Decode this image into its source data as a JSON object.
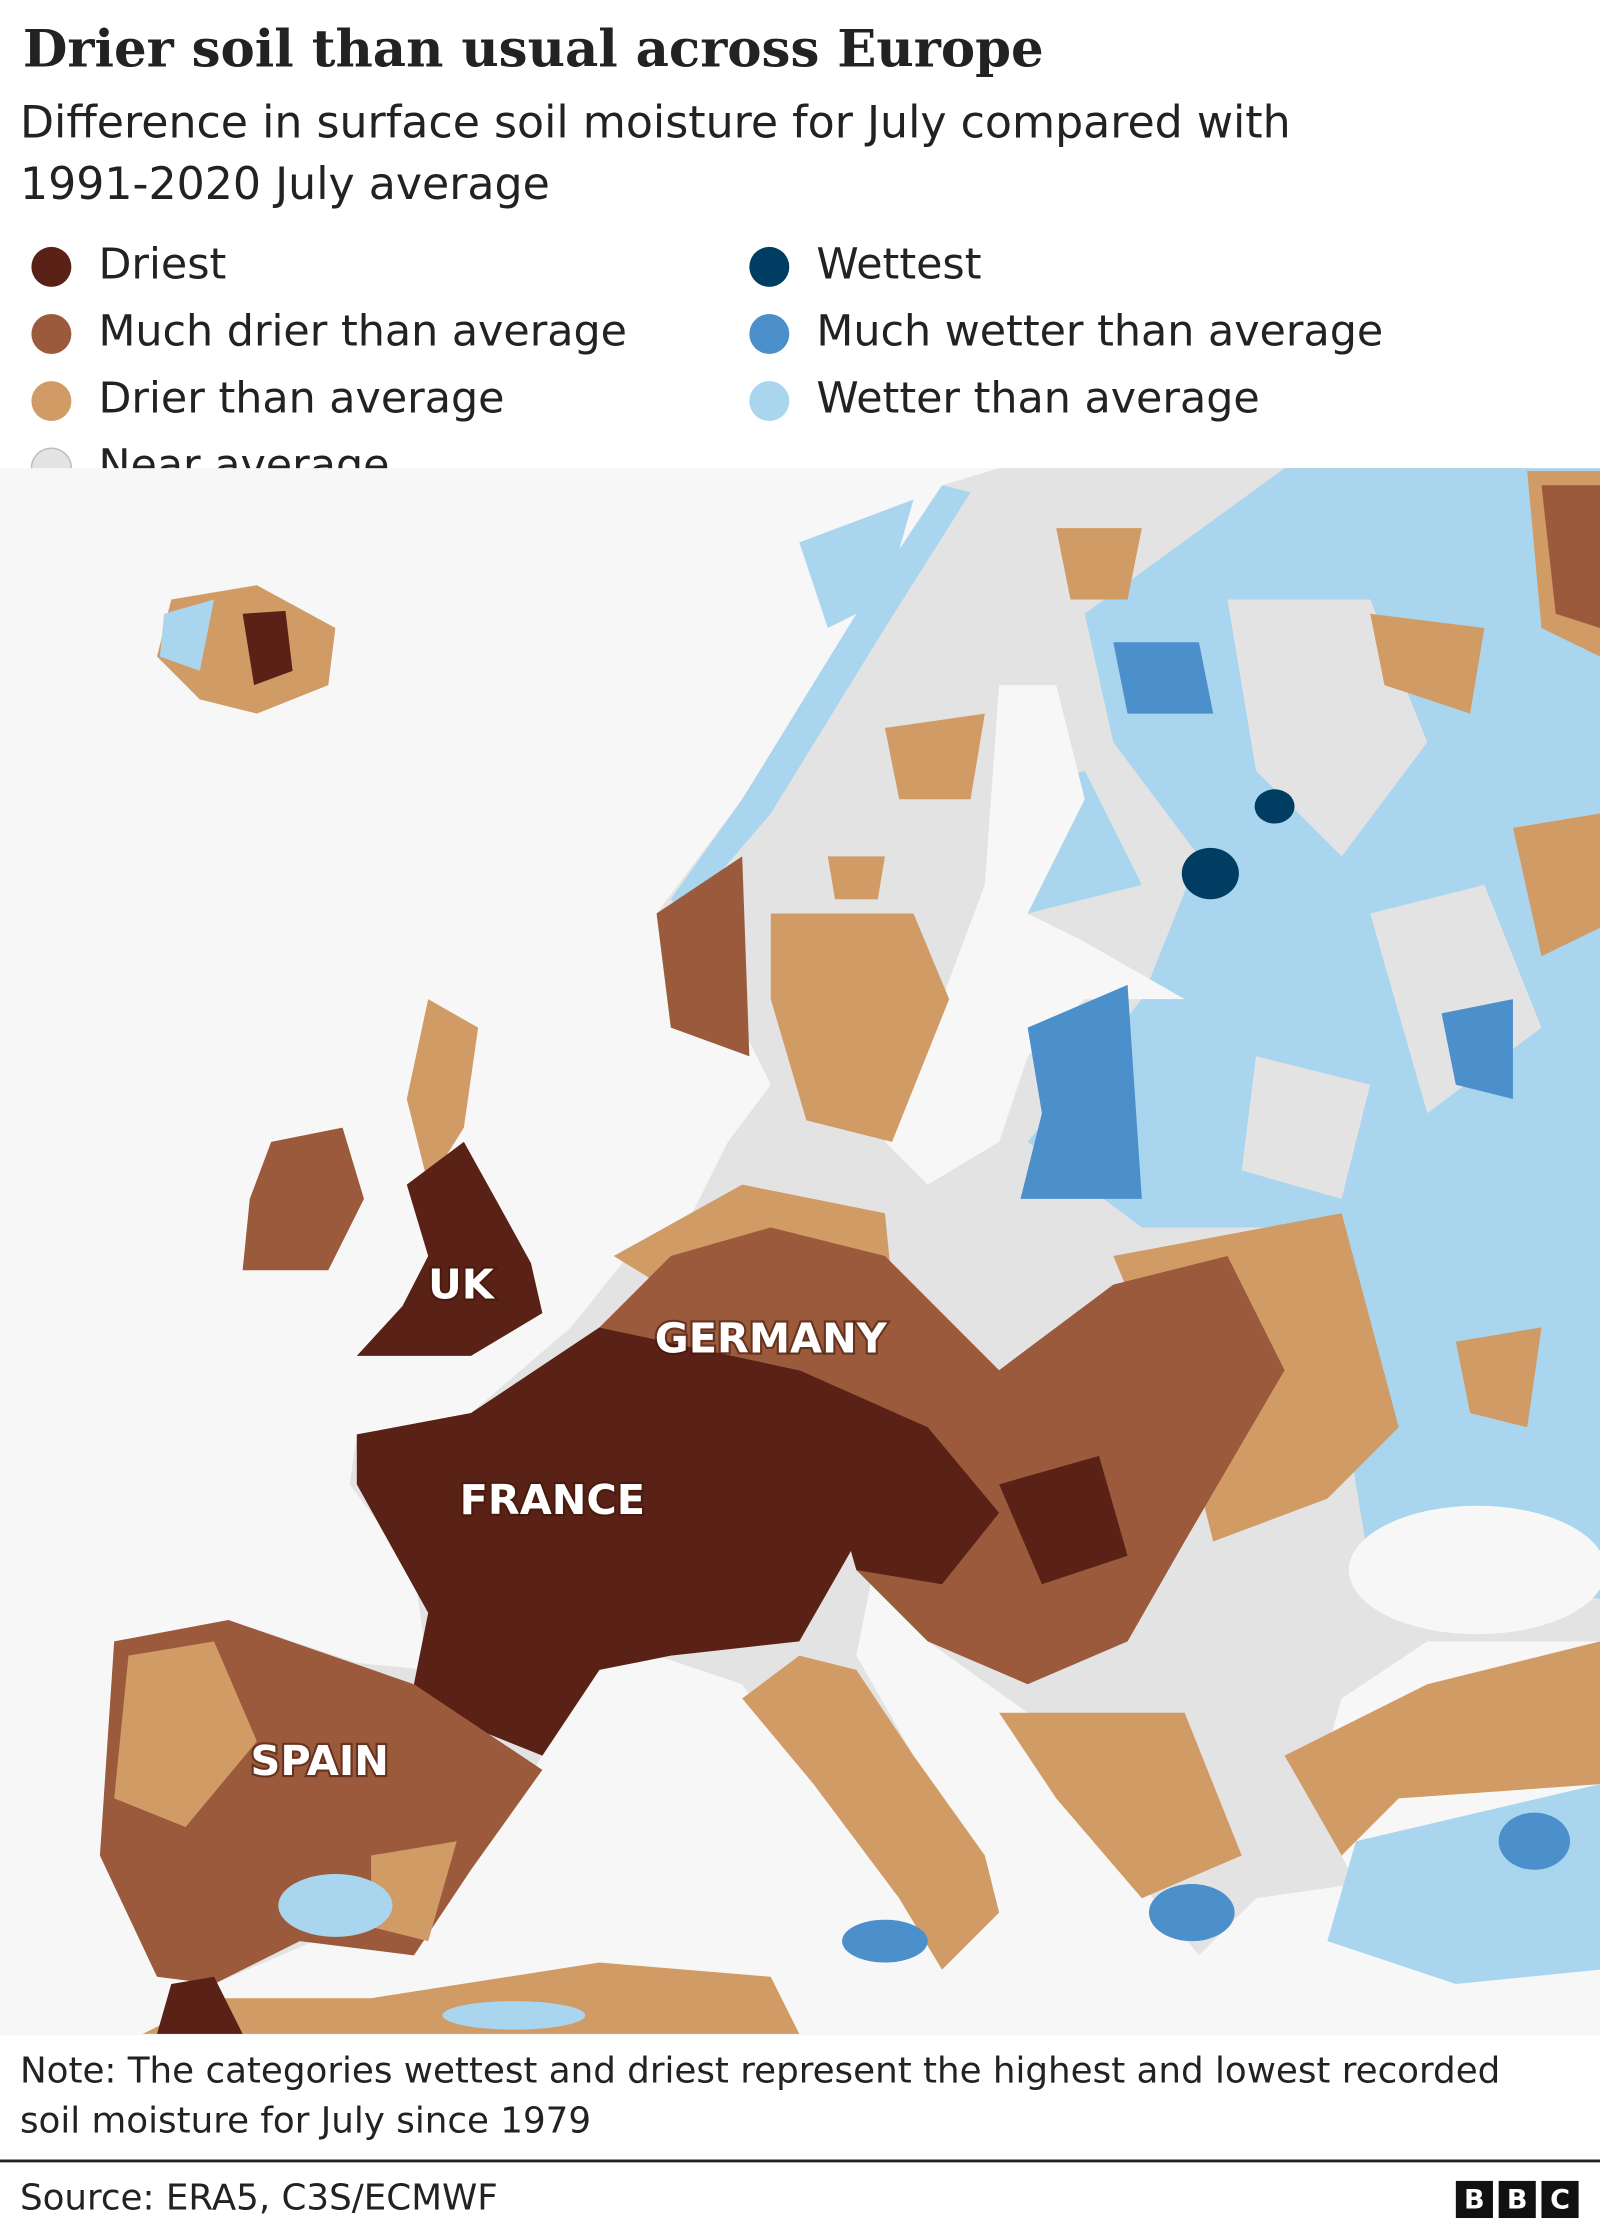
{
  "header": {
    "title": "Drier soil than usual across Europe",
    "subtitle": [
      "Difference in surface soil moisture for July compared with",
      "1991-2020 July average"
    ]
  },
  "legend": [
    {
      "label": "Driest",
      "color": "#5a2216"
    },
    {
      "label": "Much drier than average",
      "color": "#9b5a3b"
    },
    {
      "label": "Drier than average",
      "color": "#d19b66"
    },
    {
      "label": "Near average",
      "color": "#e3e3e3"
    },
    {
      "label": "Wettest",
      "color": "#003d62"
    },
    {
      "label": "Much wetter than average",
      "color": "#4b8fcb"
    },
    {
      "label": "Wetter than average",
      "color": "#aad5ee"
    }
  ],
  "map": {
    "labels": [
      "UK",
      "GERMANY",
      "FRANCE",
      "SPAIN"
    ]
  },
  "note": [
    "Note: The categories wettest and driest represent the highest and lowest recorded",
    "soil moisture for July since 1979"
  ],
  "footer": {
    "source": "Source: ERA5, C3S/ECMWF",
    "logo": [
      "B",
      "B",
      "C"
    ]
  }
}
